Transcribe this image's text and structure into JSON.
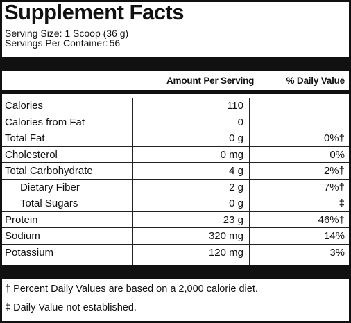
{
  "title": "Supplement Facts",
  "serving": {
    "size_label": "Serving Size: 1 Scoop (36 g)",
    "per_container_label": "Servings Per Container:",
    "per_container_value": "56"
  },
  "columns": {
    "amount": "Amount Per Serving",
    "daily_value": "% Daily Value"
  },
  "rows": [
    {
      "label": "Calories",
      "amount": "110",
      "dv": ""
    },
    {
      "label": "Calories from Fat",
      "amount": "0",
      "dv": ""
    },
    {
      "label": "Total Fat",
      "amount": "0 g",
      "dv": "0%†"
    },
    {
      "label": "Cholesterol",
      "amount": "0 mg",
      "dv": "0%"
    },
    {
      "label": "Total Carbohydrate",
      "amount": "4 g",
      "dv": "2%†"
    },
    {
      "label": "Dietary Fiber",
      "amount": "2 g",
      "dv": "7%†"
    },
    {
      "label": "Total Sugars",
      "amount": "0 g",
      "dv": "‡"
    },
    {
      "label": "Protein",
      "amount": "23 g",
      "dv": "46%†"
    },
    {
      "label": "Sodium",
      "amount": "320 mg",
      "dv": "14%"
    },
    {
      "label": "Potassium",
      "amount": "120 mg",
      "dv": "3%"
    }
  ],
  "footnotes": {
    "dagger": "† Percent Daily Values are based on a 2,000 calorie diet.",
    "double_dagger": "‡ Daily Value not established."
  }
}
